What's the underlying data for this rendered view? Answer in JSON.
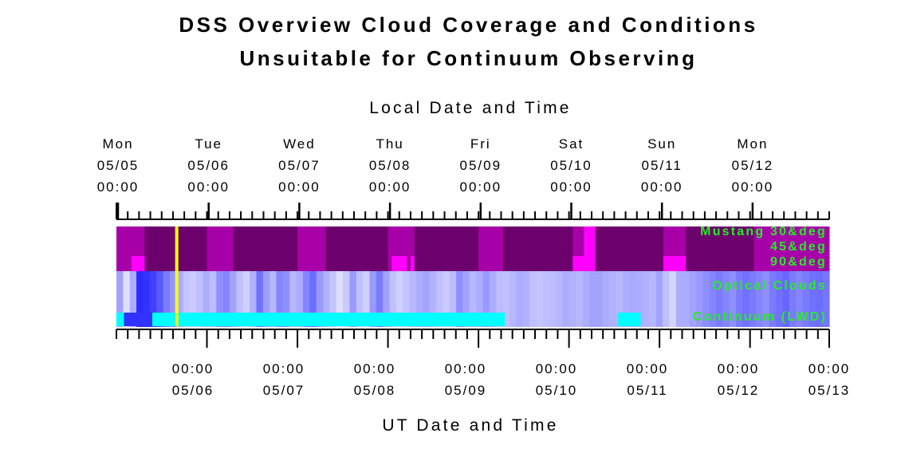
{
  "chart_data": {
    "type": "heatmap",
    "title": "DSS Overview Cloud Coverage and Conditions",
    "subtitle": "Unsuitable for Continuum Observing",
    "top_axis": {
      "label": "Local Date and Time",
      "ticks": [
        {
          "day": "Mon",
          "date": "05/05",
          "time": "00:00"
        },
        {
          "day": "Tue",
          "date": "05/06",
          "time": "00:00"
        },
        {
          "day": "Wed",
          "date": "05/07",
          "time": "00:00"
        },
        {
          "day": "Thu",
          "date": "05/08",
          "time": "00:00"
        },
        {
          "day": "Fri",
          "date": "05/09",
          "time": "00:00"
        },
        {
          "day": "Sat",
          "date": "05/10",
          "time": "00:00"
        },
        {
          "day": "Sun",
          "date": "05/11",
          "time": "00:00"
        },
        {
          "day": "Mon",
          "date": "05/12",
          "time": "00:00"
        }
      ]
    },
    "bottom_axis": {
      "label": "UT Date and Time",
      "ticks": [
        {
          "time": "00:00",
          "date": "05/06"
        },
        {
          "time": "00:00",
          "date": "05/07"
        },
        {
          "time": "00:00",
          "date": "05/08"
        },
        {
          "time": "00:00",
          "date": "05/09"
        },
        {
          "time": "00:00",
          "date": "05/10"
        },
        {
          "time": "00:00",
          "date": "05/11"
        },
        {
          "time": "00:00",
          "date": "05/12"
        },
        {
          "time": "00:00",
          "date": "05/13"
        }
      ]
    },
    "x_range_hours": [
      0,
      189
    ],
    "current_time_hour": 16,
    "rows": {
      "mustang_label": "Mustang 30&deg",
      "label_45": "45&deg",
      "label_90": "90&deg",
      "optical_label": "Optical Clouds",
      "continuum_label": "Continuum (LWD)"
    },
    "colors": {
      "dark_purple": "#6c006c",
      "mid_purple": "#a800a8",
      "magenta": "#ff00ff",
      "cyan": "#00ffff",
      "current_time": "#ffff00",
      "row_label": "#22ee22"
    },
    "mustang_segments": [
      {
        "start": 0,
        "end": 7.5,
        "shade": 1
      },
      {
        "start": 7.5,
        "end": 24,
        "shade": 0
      },
      {
        "start": 24,
        "end": 31,
        "shade": 1
      },
      {
        "start": 31,
        "end": 48,
        "shade": 0
      },
      {
        "start": 48,
        "end": 55.5,
        "shade": 1
      },
      {
        "start": 55.5,
        "end": 72,
        "shade": 0
      },
      {
        "start": 72,
        "end": 79,
        "shade": 1
      },
      {
        "start": 79,
        "end": 96,
        "shade": 0
      },
      {
        "start": 96,
        "end": 102.5,
        "shade": 1
      },
      {
        "start": 102.5,
        "end": 121,
        "shade": 0
      },
      {
        "start": 121,
        "end": 124,
        "shade": 1
      },
      {
        "start": 124,
        "end": 127,
        "shade": 2
      },
      {
        "start": 127,
        "end": 145,
        "shade": 0
      },
      {
        "start": 145,
        "end": 151,
        "shade": 1
      },
      {
        "start": 151,
        "end": 169,
        "shade": 0
      },
      {
        "start": 169,
        "end": 189,
        "shade": 1
      }
    ],
    "mustang_highlights": [
      {
        "start": 4,
        "end": 7.5,
        "shade": 2
      },
      {
        "start": 73,
        "end": 77,
        "shade": 2
      },
      {
        "start": 78,
        "end": 79,
        "shade": 2
      },
      {
        "start": 121,
        "end": 124,
        "shade": 2
      },
      {
        "start": 145,
        "end": 151,
        "shade": 2
      }
    ],
    "optical_cloud_levels": [
      0.35,
      0.05,
      0.3,
      0.95,
      0.92,
      0.85,
      0.72,
      0.55,
      0.42,
      0.3,
      0.18,
      0.15,
      0.2,
      0.3,
      0.22,
      0.45,
      0.5,
      0.35,
      0.2,
      0.12,
      0.28,
      0.6,
      0.38,
      0.25,
      0.5,
      0.45,
      0.25,
      0.3,
      0.5,
      0.62,
      0.4,
      0.28,
      0.18,
      0.05,
      0.15,
      0.4,
      0.2,
      0.12,
      0.4,
      0.55,
      0.35,
      0.2,
      0.12,
      0.18,
      0.25,
      0.3,
      0.35,
      0.28,
      0.2,
      0.15,
      0.22,
      0.45,
      0.35,
      0.25,
      0.3,
      0.4,
      0.3,
      0.22,
      0.2,
      0.25,
      0.3,
      0.28,
      0.2,
      0.18,
      0.2,
      0.22,
      0.25,
      0.3,
      0.28,
      0.25,
      0.3,
      0.35,
      0.35,
      0.3,
      0.28,
      0.25,
      0.3,
      0.32,
      0.3,
      0.28,
      0.25,
      0.35,
      0.2,
      0.1,
      0.3,
      0.3,
      0.35,
      0.4,
      0.45,
      0.5,
      0.55,
      0.5,
      0.45,
      0.55,
      0.6,
      0.55,
      0.5,
      0.45,
      0.55,
      0.6,
      0.65,
      0.55,
      0.5,
      0.55,
      0.6,
      0.62,
      0.58
    ],
    "continuum_segments": [
      {
        "start": 0,
        "end": 2
      },
      {
        "start": 9.5,
        "end": 103
      },
      {
        "start": 133,
        "end": 139
      }
    ],
    "continuum_optical_blocks": [
      {
        "start": 2,
        "end": 9.5,
        "level": 0.92
      }
    ]
  }
}
